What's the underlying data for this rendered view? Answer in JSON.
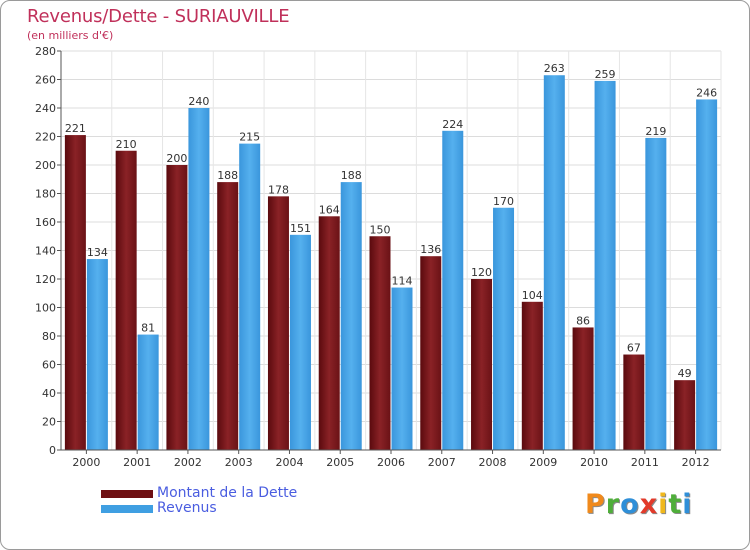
{
  "header": {
    "title": "Revenus/Dette - SURIAUVILLE",
    "subtitle": "(en milliers d'€)"
  },
  "chart_data": {
    "type": "bar",
    "categories": [
      "2000",
      "2001",
      "2002",
      "2003",
      "2004",
      "2005",
      "2006",
      "2007",
      "2008",
      "2009",
      "2010",
      "2011",
      "2012"
    ],
    "series": [
      {
        "name": "Montant de la Dette",
        "color": "#7a1a1e",
        "values": [
          221,
          210,
          200,
          188,
          178,
          164,
          150,
          136,
          120,
          104,
          86,
          67,
          49
        ]
      },
      {
        "name": "Revenus",
        "color": "#3f9fe2",
        "values": [
          134,
          81,
          240,
          215,
          151,
          188,
          114,
          224,
          170,
          263,
          259,
          219,
          246
        ]
      }
    ],
    "ylim": [
      0,
      280
    ],
    "yticks": [
      0,
      20,
      40,
      60,
      80,
      100,
      120,
      140,
      160,
      180,
      200,
      220,
      240,
      260,
      280
    ],
    "grid": true,
    "data_labels": true,
    "legend": "bottom-left"
  },
  "legend": {
    "items": [
      {
        "label": "Montant de la Dette",
        "color": "#6e0f12"
      },
      {
        "label": "Revenus",
        "color": "#3f9fe2"
      }
    ]
  },
  "logo": {
    "letters": [
      "P",
      "r",
      "o",
      "x",
      "i",
      "t",
      "i"
    ],
    "colors": [
      "#f08a1c",
      "#4fae3a",
      "#2f8fd8",
      "#e23a2a",
      "#f0b81c",
      "#4fae3a",
      "#2f8fd8"
    ]
  }
}
